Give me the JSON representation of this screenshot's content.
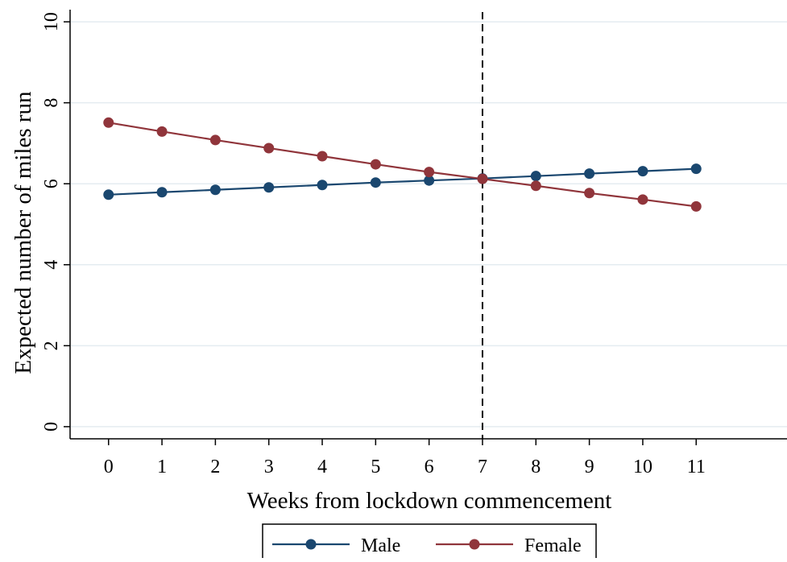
{
  "chart_data": {
    "type": "line",
    "title": "",
    "xlabel": "Weeks from lockdown commencement",
    "ylabel": "Expected number of miles run",
    "xlim": [
      -0.72,
      12.7
    ],
    "ylim": [
      -0.3,
      10.3
    ],
    "x_ticks": [
      0,
      1,
      2,
      3,
      4,
      5,
      6,
      7,
      8,
      9,
      10,
      11
    ],
    "y_ticks": [
      0,
      2,
      4,
      6,
      8,
      10
    ],
    "grid": "horizontal",
    "legend_position": "bottom",
    "reference_line": {
      "x": 7,
      "style": "dashed"
    },
    "x": [
      0,
      1,
      2,
      3,
      4,
      5,
      6,
      7,
      8,
      9,
      10,
      11
    ],
    "series": [
      {
        "name": "Male",
        "color": "#1a476f",
        "values": [
          5.73,
          5.79,
          5.85,
          5.91,
          5.97,
          6.03,
          6.08,
          6.13,
          6.19,
          6.25,
          6.31,
          6.37
        ]
      },
      {
        "name": "Female",
        "color": "#90353b",
        "values": [
          7.51,
          7.29,
          7.08,
          6.88,
          6.68,
          6.48,
          6.29,
          6.12,
          5.95,
          5.77,
          5.61,
          5.44
        ]
      }
    ]
  },
  "colors": {
    "grid": "#e4ecf0",
    "axis": "#000000",
    "reference_line": "#000000"
  }
}
